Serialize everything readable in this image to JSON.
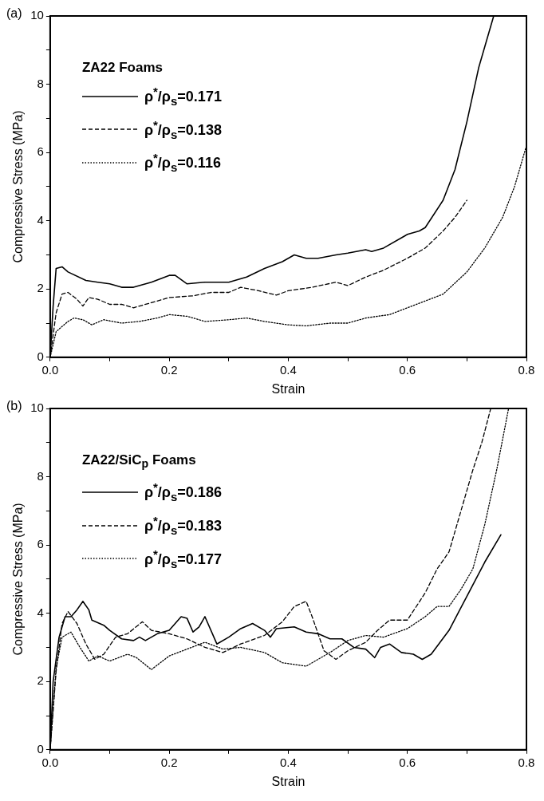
{
  "chart_data": [
    {
      "type": "line",
      "annotations": [
        "(a)"
      ],
      "xlabel": "Strain",
      "ylabel": "Compressive Stress (MPa)",
      "legend_title": "ZA22 Foams",
      "legend": "top left",
      "grid": false,
      "marker": "none",
      "xlim": [
        0,
        0.8
      ],
      "xticks": [
        {
          "value": 0,
          "label": "0.0"
        },
        {
          "value": 0.1,
          "label": null
        },
        0.2,
        {
          "value": 0.3,
          "label": null
        },
        0.4,
        {
          "value": 0.5,
          "label": null
        },
        0.6,
        {
          "value": 0.7,
          "label": null
        },
        0.8
      ],
      "ylim": [
        0,
        10
      ],
      "yticks": [
        0,
        {
          "value": 1,
          "label": null
        },
        2,
        {
          "value": 3,
          "label": null
        },
        4,
        {
          "value": 5,
          "label": null
        },
        6,
        {
          "value": 7,
          "label": null
        },
        8,
        {
          "value": 9,
          "label": null
        },
        10
      ],
      "series": [
        {
          "name": "ρ$^{*}$/ρ$_{s}$=0.171",
          "color": "#000000",
          "line_style": "solid",
          "x": [
            0,
            0.005,
            0.01,
            0.02,
            0.03,
            0.06,
            0.08,
            0.1,
            0.12,
            0.14,
            0.17,
            0.2,
            0.21,
            0.23,
            0.26,
            0.3,
            0.33,
            0.36,
            0.39,
            0.41,
            0.43,
            0.45,
            0.48,
            0.5,
            0.53,
            0.54,
            0.56,
            0.6,
            0.62,
            0.63,
            0.66,
            0.68,
            0.7,
            0.72,
            0.745
          ],
          "values": [
            0,
            1.5,
            2.6,
            2.65,
            2.5,
            2.25,
            2.2,
            2.15,
            2.05,
            2.05,
            2.2,
            2.4,
            2.4,
            2.15,
            2.2,
            2.2,
            2.35,
            2.6,
            2.8,
            3.0,
            2.9,
            2.9,
            3.0,
            3.05,
            3.15,
            3.1,
            3.2,
            3.6,
            3.7,
            3.8,
            4.6,
            5.5,
            6.9,
            8.5,
            10
          ]
        },
        {
          "name": "ρ$^{*}$/ρ$_{s}$=0.138",
          "color": "#000000",
          "line_style": "dashed",
          "x": [
            0,
            0.01,
            0.02,
            0.03,
            0.045,
            0.055,
            0.065,
            0.08,
            0.1,
            0.12,
            0.14,
            0.17,
            0.2,
            0.24,
            0.27,
            0.3,
            0.32,
            0.35,
            0.38,
            0.4,
            0.44,
            0.48,
            0.5,
            0.53,
            0.56,
            0.6,
            0.63,
            0.66,
            0.68,
            0.7
          ],
          "values": [
            0,
            1.3,
            1.85,
            1.9,
            1.7,
            1.5,
            1.75,
            1.7,
            1.55,
            1.55,
            1.45,
            1.6,
            1.75,
            1.8,
            1.9,
            1.9,
            2.05,
            1.95,
            1.82,
            1.95,
            2.05,
            2.2,
            2.1,
            2.35,
            2.55,
            2.9,
            3.2,
            3.7,
            4.1,
            4.6
          ]
        },
        {
          "name": "ρ$^{*}$/ρ$_{s}$=0.116",
          "color": "#000000",
          "line_style": "dotted",
          "x": [
            0,
            0.01,
            0.03,
            0.04,
            0.055,
            0.07,
            0.09,
            0.12,
            0.15,
            0.18,
            0.2,
            0.23,
            0.26,
            0.3,
            0.33,
            0.36,
            0.4,
            0.43,
            0.47,
            0.5,
            0.53,
            0.57,
            0.6,
            0.63,
            0.66,
            0.7,
            0.73,
            0.76,
            0.78,
            0.8
          ],
          "values": [
            0,
            0.75,
            1.05,
            1.15,
            1.1,
            0.95,
            1.1,
            1.0,
            1.05,
            1.15,
            1.25,
            1.2,
            1.05,
            1.1,
            1.15,
            1.05,
            0.95,
            0.92,
            1.0,
            1.0,
            1.15,
            1.25,
            1.45,
            1.65,
            1.85,
            2.5,
            3.2,
            4.1,
            5.0,
            6.2
          ]
        }
      ]
    },
    {
      "type": "line",
      "annotations": [
        "(b)"
      ],
      "xlabel": "Strain",
      "ylabel": "Compressive Stress (MPa)",
      "legend_title": "ZA22/SiC$_{p}$ Foams",
      "legend": "top left",
      "grid": false,
      "marker": "none",
      "xlim": [
        0,
        0.8
      ],
      "xticks": [
        {
          "value": 0,
          "label": "0.0"
        },
        {
          "value": 0.1,
          "label": null
        },
        0.2,
        {
          "value": 0.3,
          "label": null
        },
        0.4,
        {
          "value": 0.5,
          "label": null
        },
        0.6,
        {
          "value": 0.7,
          "label": null
        },
        0.8
      ],
      "ylim": [
        0,
        10
      ],
      "yticks": [
        0,
        {
          "value": 1,
          "label": null
        },
        2,
        {
          "value": 3,
          "label": null
        },
        4,
        {
          "value": 5,
          "label": null
        },
        6,
        {
          "value": 7,
          "label": null
        },
        8,
        {
          "value": 9,
          "label": null
        },
        10
      ],
      "series": [
        {
          "name": "ρ$^{*}$/ρ$_{s}$=0.186",
          "color": "#000000",
          "line_style": "solid",
          "x": [
            0,
            0.005,
            0.015,
            0.025,
            0.035,
            0.045,
            0.055,
            0.065,
            0.07,
            0.09,
            0.1,
            0.12,
            0.14,
            0.15,
            0.16,
            0.18,
            0.2,
            0.22,
            0.23,
            0.24,
            0.25,
            0.26,
            0.28,
            0.3,
            0.32,
            0.34,
            0.36,
            0.37,
            0.38,
            0.41,
            0.43,
            0.45,
            0.47,
            0.49,
            0.51,
            0.53,
            0.545,
            0.555,
            0.57,
            0.59,
            0.61,
            0.625,
            0.64,
            0.67,
            0.7,
            0.73,
            0.757
          ],
          "values": [
            0,
            2.0,
            3.3,
            3.9,
            3.9,
            4.1,
            4.35,
            4.1,
            3.8,
            3.65,
            3.5,
            3.25,
            3.2,
            3.3,
            3.2,
            3.4,
            3.5,
            3.9,
            3.85,
            3.45,
            3.6,
            3.9,
            3.1,
            3.3,
            3.55,
            3.7,
            3.5,
            3.3,
            3.55,
            3.6,
            3.45,
            3.4,
            3.25,
            3.25,
            3.0,
            2.95,
            2.7,
            3.0,
            3.1,
            2.85,
            2.8,
            2.65,
            2.8,
            3.5,
            4.5,
            5.5,
            6.3
          ]
        },
        {
          "name": "ρ$^{*}$/ρ$_{s}$=0.183",
          "color": "#000000",
          "line_style": "dashed",
          "x": [
            0,
            0.01,
            0.02,
            0.03,
            0.045,
            0.06,
            0.075,
            0.09,
            0.11,
            0.13,
            0.155,
            0.17,
            0.2,
            0.23,
            0.26,
            0.29,
            0.32,
            0.36,
            0.39,
            0.41,
            0.43,
            0.44,
            0.46,
            0.48,
            0.5,
            0.53,
            0.55,
            0.57,
            0.6,
            0.63,
            0.65,
            0.67,
            0.69,
            0.71,
            0.725,
            0.74
          ],
          "values": [
            0,
            2.3,
            3.7,
            4.05,
            3.7,
            3.1,
            2.65,
            2.8,
            3.3,
            3.4,
            3.75,
            3.5,
            3.4,
            3.25,
            3.0,
            2.85,
            3.1,
            3.35,
            3.75,
            4.2,
            4.35,
            3.9,
            2.9,
            2.65,
            2.9,
            3.15,
            3.5,
            3.8,
            3.8,
            4.6,
            5.3,
            5.8,
            7.0,
            8.2,
            9.0,
            10
          ]
        },
        {
          "name": "ρ$^{*}$/ρ$_{s}$=0.177",
          "color": "#000000",
          "line_style": "dotted",
          "x": [
            0,
            0.01,
            0.02,
            0.035,
            0.05,
            0.065,
            0.08,
            0.1,
            0.13,
            0.145,
            0.17,
            0.2,
            0.23,
            0.26,
            0.29,
            0.32,
            0.36,
            0.39,
            0.43,
            0.47,
            0.5,
            0.53,
            0.56,
            0.6,
            0.63,
            0.65,
            0.67,
            0.69,
            0.71,
            0.73,
            0.75,
            0.77
          ],
          "values": [
            0,
            2.4,
            3.3,
            3.45,
            3.0,
            2.6,
            2.75,
            2.6,
            2.8,
            2.7,
            2.35,
            2.75,
            2.95,
            3.15,
            2.95,
            3.0,
            2.85,
            2.55,
            2.45,
            2.85,
            3.2,
            3.35,
            3.3,
            3.55,
            3.9,
            4.2,
            4.2,
            4.7,
            5.3,
            6.6,
            8.2,
            10
          ]
        }
      ]
    }
  ]
}
